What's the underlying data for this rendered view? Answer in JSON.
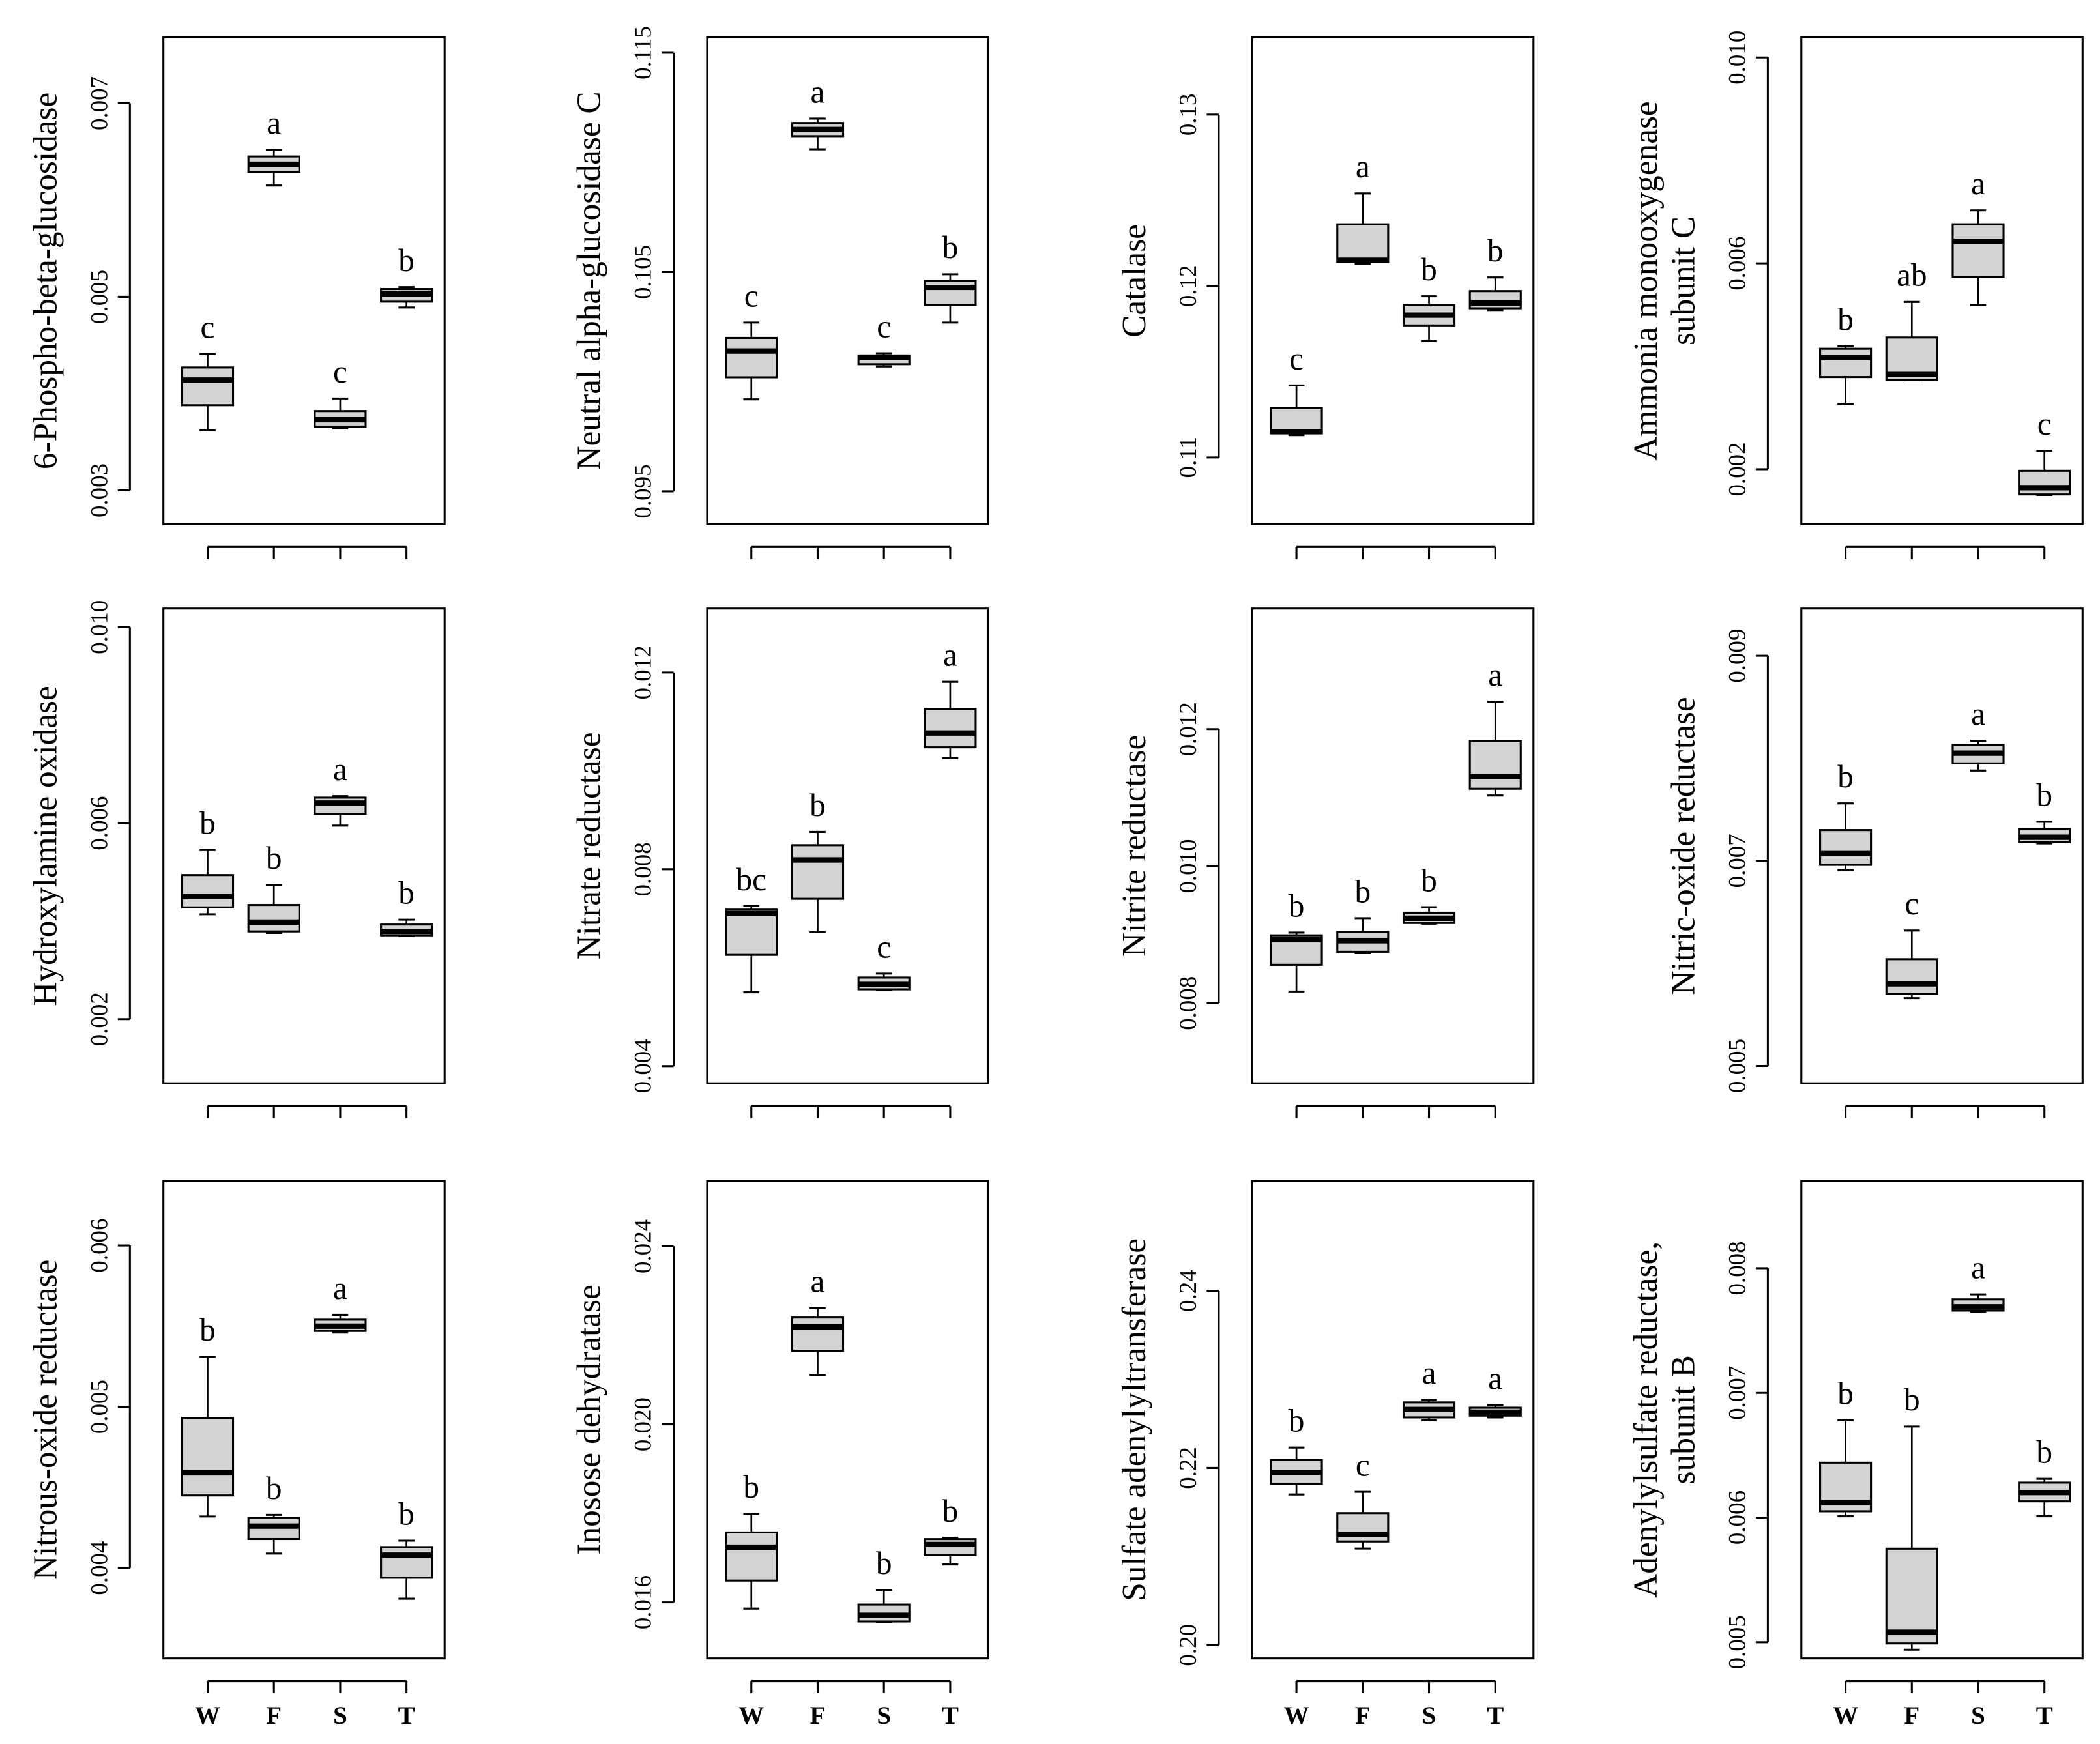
{
  "chart_data": [
    {
      "type": "box",
      "ylabel": [
        "6-Phospho-beta-glucosidase"
      ],
      "ylim": [
        0.00265,
        0.00768
      ],
      "yticks": [
        0.003,
        0.005,
        0.007
      ],
      "boxes": [
        {
          "min": 0.00362,
          "q1": 0.00388,
          "median": 0.00414,
          "q3": 0.00427,
          "max": 0.00441,
          "label": "c"
        },
        {
          "min": 0.00615,
          "q1": 0.00629,
          "median": 0.00637,
          "q3": 0.00645,
          "max": 0.00652,
          "label": "a"
        },
        {
          "min": 0.00364,
          "q1": 0.00366,
          "median": 0.00373,
          "q3": 0.00382,
          "max": 0.00395,
          "label": "c"
        },
        {
          "min": 0.00489,
          "q1": 0.00495,
          "median": 0.00503,
          "q3": 0.00508,
          "max": 0.0051,
          "label": "b"
        }
      ]
    },
    {
      "type": "box",
      "ylabel": [
        "Neutral alpha-glucosidase C"
      ],
      "ylim": [
        0.0935,
        0.1157
      ],
      "yticks": [
        0.095,
        0.105,
        0.115
      ],
      "boxes": [
        {
          "min": 0.0992,
          "q1": 0.1002,
          "median": 0.1014,
          "q3": 0.102,
          "max": 0.1027,
          "label": "c"
        },
        {
          "min": 0.1106,
          "q1": 0.1112,
          "median": 0.1115,
          "q3": 0.1118,
          "max": 0.112,
          "label": "a"
        },
        {
          "min": 0.1007,
          "q1": 0.1008,
          "median": 0.1011,
          "q3": 0.1012,
          "max": 0.1013,
          "label": "c"
        },
        {
          "min": 0.1027,
          "q1": 0.1035,
          "median": 0.1043,
          "q3": 0.1046,
          "max": 0.1049,
          "label": "b"
        }
      ]
    },
    {
      "type": "box",
      "ylabel": [
        "Catalase"
      ],
      "ylim": [
        0.1061,
        0.1345
      ],
      "yticks": [
        0.11,
        0.12,
        0.13
      ],
      "boxes": [
        {
          "min": 0.1113,
          "q1": 0.1114,
          "median": 0.1115,
          "q3": 0.1129,
          "max": 0.1142,
          "label": "c"
        },
        {
          "min": 0.1213,
          "q1": 0.1214,
          "median": 0.1215,
          "q3": 0.1236,
          "max": 0.1254,
          "label": "a"
        },
        {
          "min": 0.1168,
          "q1": 0.1177,
          "median": 0.1183,
          "q3": 0.1189,
          "max": 0.1194,
          "label": "b"
        },
        {
          "min": 0.1186,
          "q1": 0.1187,
          "median": 0.119,
          "q3": 0.1197,
          "max": 0.1205,
          "label": "b"
        }
      ]
    },
    {
      "type": "box",
      "ylabel": [
        "Ammonia monooxygenase",
        "subunit C"
      ],
      "ylim": [
        0.00093,
        0.01039
      ],
      "yticks": [
        0.002,
        0.006,
        {
          "value": 0.01,
          "label": "0.010"
        }
      ],
      "boxes": [
        {
          "min": 0.00327,
          "q1": 0.00379,
          "median": 0.00417,
          "q3": 0.00434,
          "max": 0.00439,
          "label": "b"
        },
        {
          "min": 0.00373,
          "q1": 0.00374,
          "median": 0.00384,
          "q3": 0.00456,
          "max": 0.00525,
          "label": "ab"
        },
        {
          "min": 0.00519,
          "q1": 0.00574,
          "median": 0.00643,
          "q3": 0.00676,
          "max": 0.00703,
          "label": "a"
        },
        {
          "min": 0.0015,
          "q1": 0.00151,
          "median": 0.00164,
          "q3": 0.00197,
          "max": 0.00236,
          "label": "c"
        }
      ]
    },
    {
      "type": "box",
      "ylabel": [
        "Hydroxylamine oxidase"
      ],
      "ylim": [
        0.00069,
        0.01038
      ],
      "yticks": [
        0.002,
        0.006,
        {
          "value": 0.01,
          "label": "0.010"
        }
      ],
      "boxes": [
        {
          "min": 0.00414,
          "q1": 0.00428,
          "median": 0.0045,
          "q3": 0.00494,
          "max": 0.00545,
          "label": "b"
        },
        {
          "min": 0.00376,
          "q1": 0.00379,
          "median": 0.00398,
          "q3": 0.00433,
          "max": 0.00474,
          "label": "b"
        },
        {
          "min": 0.00595,
          "q1": 0.00619,
          "median": 0.00641,
          "q3": 0.00652,
          "max": 0.00655,
          "label": "a"
        },
        {
          "min": 0.0037,
          "q1": 0.00371,
          "median": 0.00379,
          "q3": 0.00393,
          "max": 0.00403,
          "label": "b"
        }
      ]
    },
    {
      "type": "box",
      "ylabel": [
        "Nitrate reductase"
      ],
      "ylim": [
        0.00365,
        0.0133
      ],
      "yticks": [
        0.004,
        0.008,
        0.012
      ],
      "boxes": [
        {
          "min": 0.0055,
          "q1": 0.00626,
          "median": 0.0071,
          "q3": 0.00718,
          "max": 0.00725,
          "label": "bc"
        },
        {
          "min": 0.00672,
          "q1": 0.0074,
          "median": 0.00819,
          "q3": 0.00849,
          "max": 0.00876,
          "label": "b"
        },
        {
          "min": 0.00555,
          "q1": 0.00556,
          "median": 0.00566,
          "q3": 0.0058,
          "max": 0.00588,
          "label": "c"
        },
        {
          "min": 0.01026,
          "q1": 0.01048,
          "median": 0.01077,
          "q3": 0.01126,
          "max": 0.01181,
          "label": "a"
        }
      ]
    },
    {
      "type": "box",
      "ylabel": [
        "Nitrite reductase"
      ],
      "ylim": [
        0.00683,
        0.01376
      ],
      "yticks": [
        0.008,
        {
          "value": 0.01,
          "label": "0.010"
        },
        0.012
      ],
      "boxes": [
        {
          "min": 0.00817,
          "q1": 0.00856,
          "median": 0.00893,
          "q3": 0.00899,
          "max": 0.00903,
          "label": "b"
        },
        {
          "min": 0.00873,
          "q1": 0.00875,
          "median": 0.00891,
          "q3": 0.00904,
          "max": 0.00924,
          "label": "b"
        },
        {
          "min": 0.00916,
          "q1": 0.00917,
          "median": 0.00924,
          "q3": 0.00932,
          "max": 0.0094,
          "label": "b"
        },
        {
          "min": 0.01103,
          "q1": 0.01113,
          "median": 0.01131,
          "q3": 0.01183,
          "max": 0.0124,
          "label": "a"
        }
      ]
    },
    {
      "type": "box",
      "ylabel": [
        "Nitric-oxide reductase"
      ],
      "ylim": [
        0.00483,
        0.00946
      ],
      "yticks": [
        0.005,
        0.007,
        0.009
      ],
      "boxes": [
        {
          "min": 0.00691,
          "q1": 0.00696,
          "median": 0.00707,
          "q3": 0.0073,
          "max": 0.00756,
          "label": "b"
        },
        {
          "min": 0.00566,
          "q1": 0.0057,
          "median": 0.0058,
          "q3": 0.00604,
          "max": 0.00632,
          "label": "c"
        },
        {
          "min": 0.00788,
          "q1": 0.00795,
          "median": 0.00805,
          "q3": 0.00813,
          "max": 0.00817,
          "label": "a"
        },
        {
          "min": 0.00717,
          "q1": 0.00718,
          "median": 0.00723,
          "q3": 0.00731,
          "max": 0.00738,
          "label": "b"
        }
      ]
    },
    {
      "type": "box",
      "ylabel": [
        "Nitrous-oxide reductase"
      ],
      "ylim": [
        0.00344,
        0.0064
      ],
      "yticks": [
        0.004,
        0.005,
        0.006
      ],
      "categories": [
        "W",
        "F",
        "S",
        "T"
      ],
      "boxes": [
        {
          "min": 0.00432,
          "q1": 0.00445,
          "median": 0.00459,
          "q3": 0.00493,
          "max": 0.00531,
          "label": "b"
        },
        {
          "min": 0.00409,
          "q1": 0.00418,
          "median": 0.00426,
          "q3": 0.00431,
          "max": 0.00433,
          "label": "b"
        },
        {
          "min": 0.00546,
          "q1": 0.00547,
          "median": 0.0055,
          "q3": 0.00554,
          "max": 0.00557,
          "label": "a"
        },
        {
          "min": 0.00381,
          "q1": 0.00394,
          "median": 0.00408,
          "q3": 0.00413,
          "max": 0.00417,
          "label": "b"
        }
      ]
    },
    {
      "type": "box",
      "ylabel": [
        "Inosose dehydratase"
      ],
      "ylim": [
        0.01474,
        0.02547
      ],
      "yticks": [
        0.016,
        {
          "value": 0.02,
          "label": "0.020"
        },
        0.024
      ],
      "categories": [
        "W",
        "F",
        "S",
        "T"
      ],
      "boxes": [
        {
          "min": 0.01586,
          "q1": 0.01649,
          "median": 0.01724,
          "q3": 0.01757,
          "max": 0.01799,
          "label": "b"
        },
        {
          "min": 0.02111,
          "q1": 0.02165,
          "median": 0.02219,
          "q3": 0.0224,
          "max": 0.02261,
          "label": "a"
        },
        {
          "min": 0.01556,
          "q1": 0.01557,
          "median": 0.01571,
          "q3": 0.01595,
          "max": 0.01628,
          "label": "b"
        },
        {
          "min": 0.01685,
          "q1": 0.01706,
          "median": 0.0173,
          "q3": 0.01742,
          "max": 0.01745,
          "label": "b"
        }
      ]
    },
    {
      "type": "box",
      "ylabel": [
        "Sulfate adenylyltransferase"
      ],
      "ylim": [
        0.1985,
        0.2524
      ],
      "yticks": [
        {
          "value": 0.2,
          "label": "0.20"
        },
        0.22,
        0.24
      ],
      "categories": [
        "W",
        "F",
        "S",
        "T"
      ],
      "boxes": [
        {
          "min": 0.217,
          "q1": 0.2182,
          "median": 0.2195,
          "q3": 0.2209,
          "max": 0.2223,
          "label": "b"
        },
        {
          "min": 0.2109,
          "q1": 0.2117,
          "median": 0.2125,
          "q3": 0.2149,
          "max": 0.2173,
          "label": "c"
        },
        {
          "min": 0.2254,
          "q1": 0.2257,
          "median": 0.2266,
          "q3": 0.2274,
          "max": 0.2277,
          "label": "a"
        },
        {
          "min": 0.2257,
          "q1": 0.2259,
          "median": 0.2263,
          "q3": 0.2268,
          "max": 0.2271,
          "label": "a"
        }
      ]
    },
    {
      "type": "box",
      "ylabel": [
        "Adenylylsulfate reductase,",
        "subunit B"
      ],
      "ylim": [
        0.00487,
        0.0087
      ],
      "yticks": [
        0.005,
        0.006,
        0.007,
        0.008
      ],
      "categories": [
        "W",
        "F",
        "S",
        "T"
      ],
      "boxes": [
        {
          "min": 0.00601,
          "q1": 0.00605,
          "median": 0.00612,
          "q3": 0.00644,
          "max": 0.00678,
          "label": "b"
        },
        {
          "min": 0.00494,
          "q1": 0.00499,
          "median": 0.00508,
          "q3": 0.00575,
          "max": 0.00673,
          "label": "b"
        },
        {
          "min": 0.00765,
          "q1": 0.00766,
          "median": 0.00769,
          "q3": 0.00775,
          "max": 0.00779,
          "label": "a"
        },
        {
          "min": 0.00601,
          "q1": 0.00613,
          "median": 0.0062,
          "q3": 0.00628,
          "max": 0.00631,
          "label": "b"
        }
      ]
    }
  ]
}
